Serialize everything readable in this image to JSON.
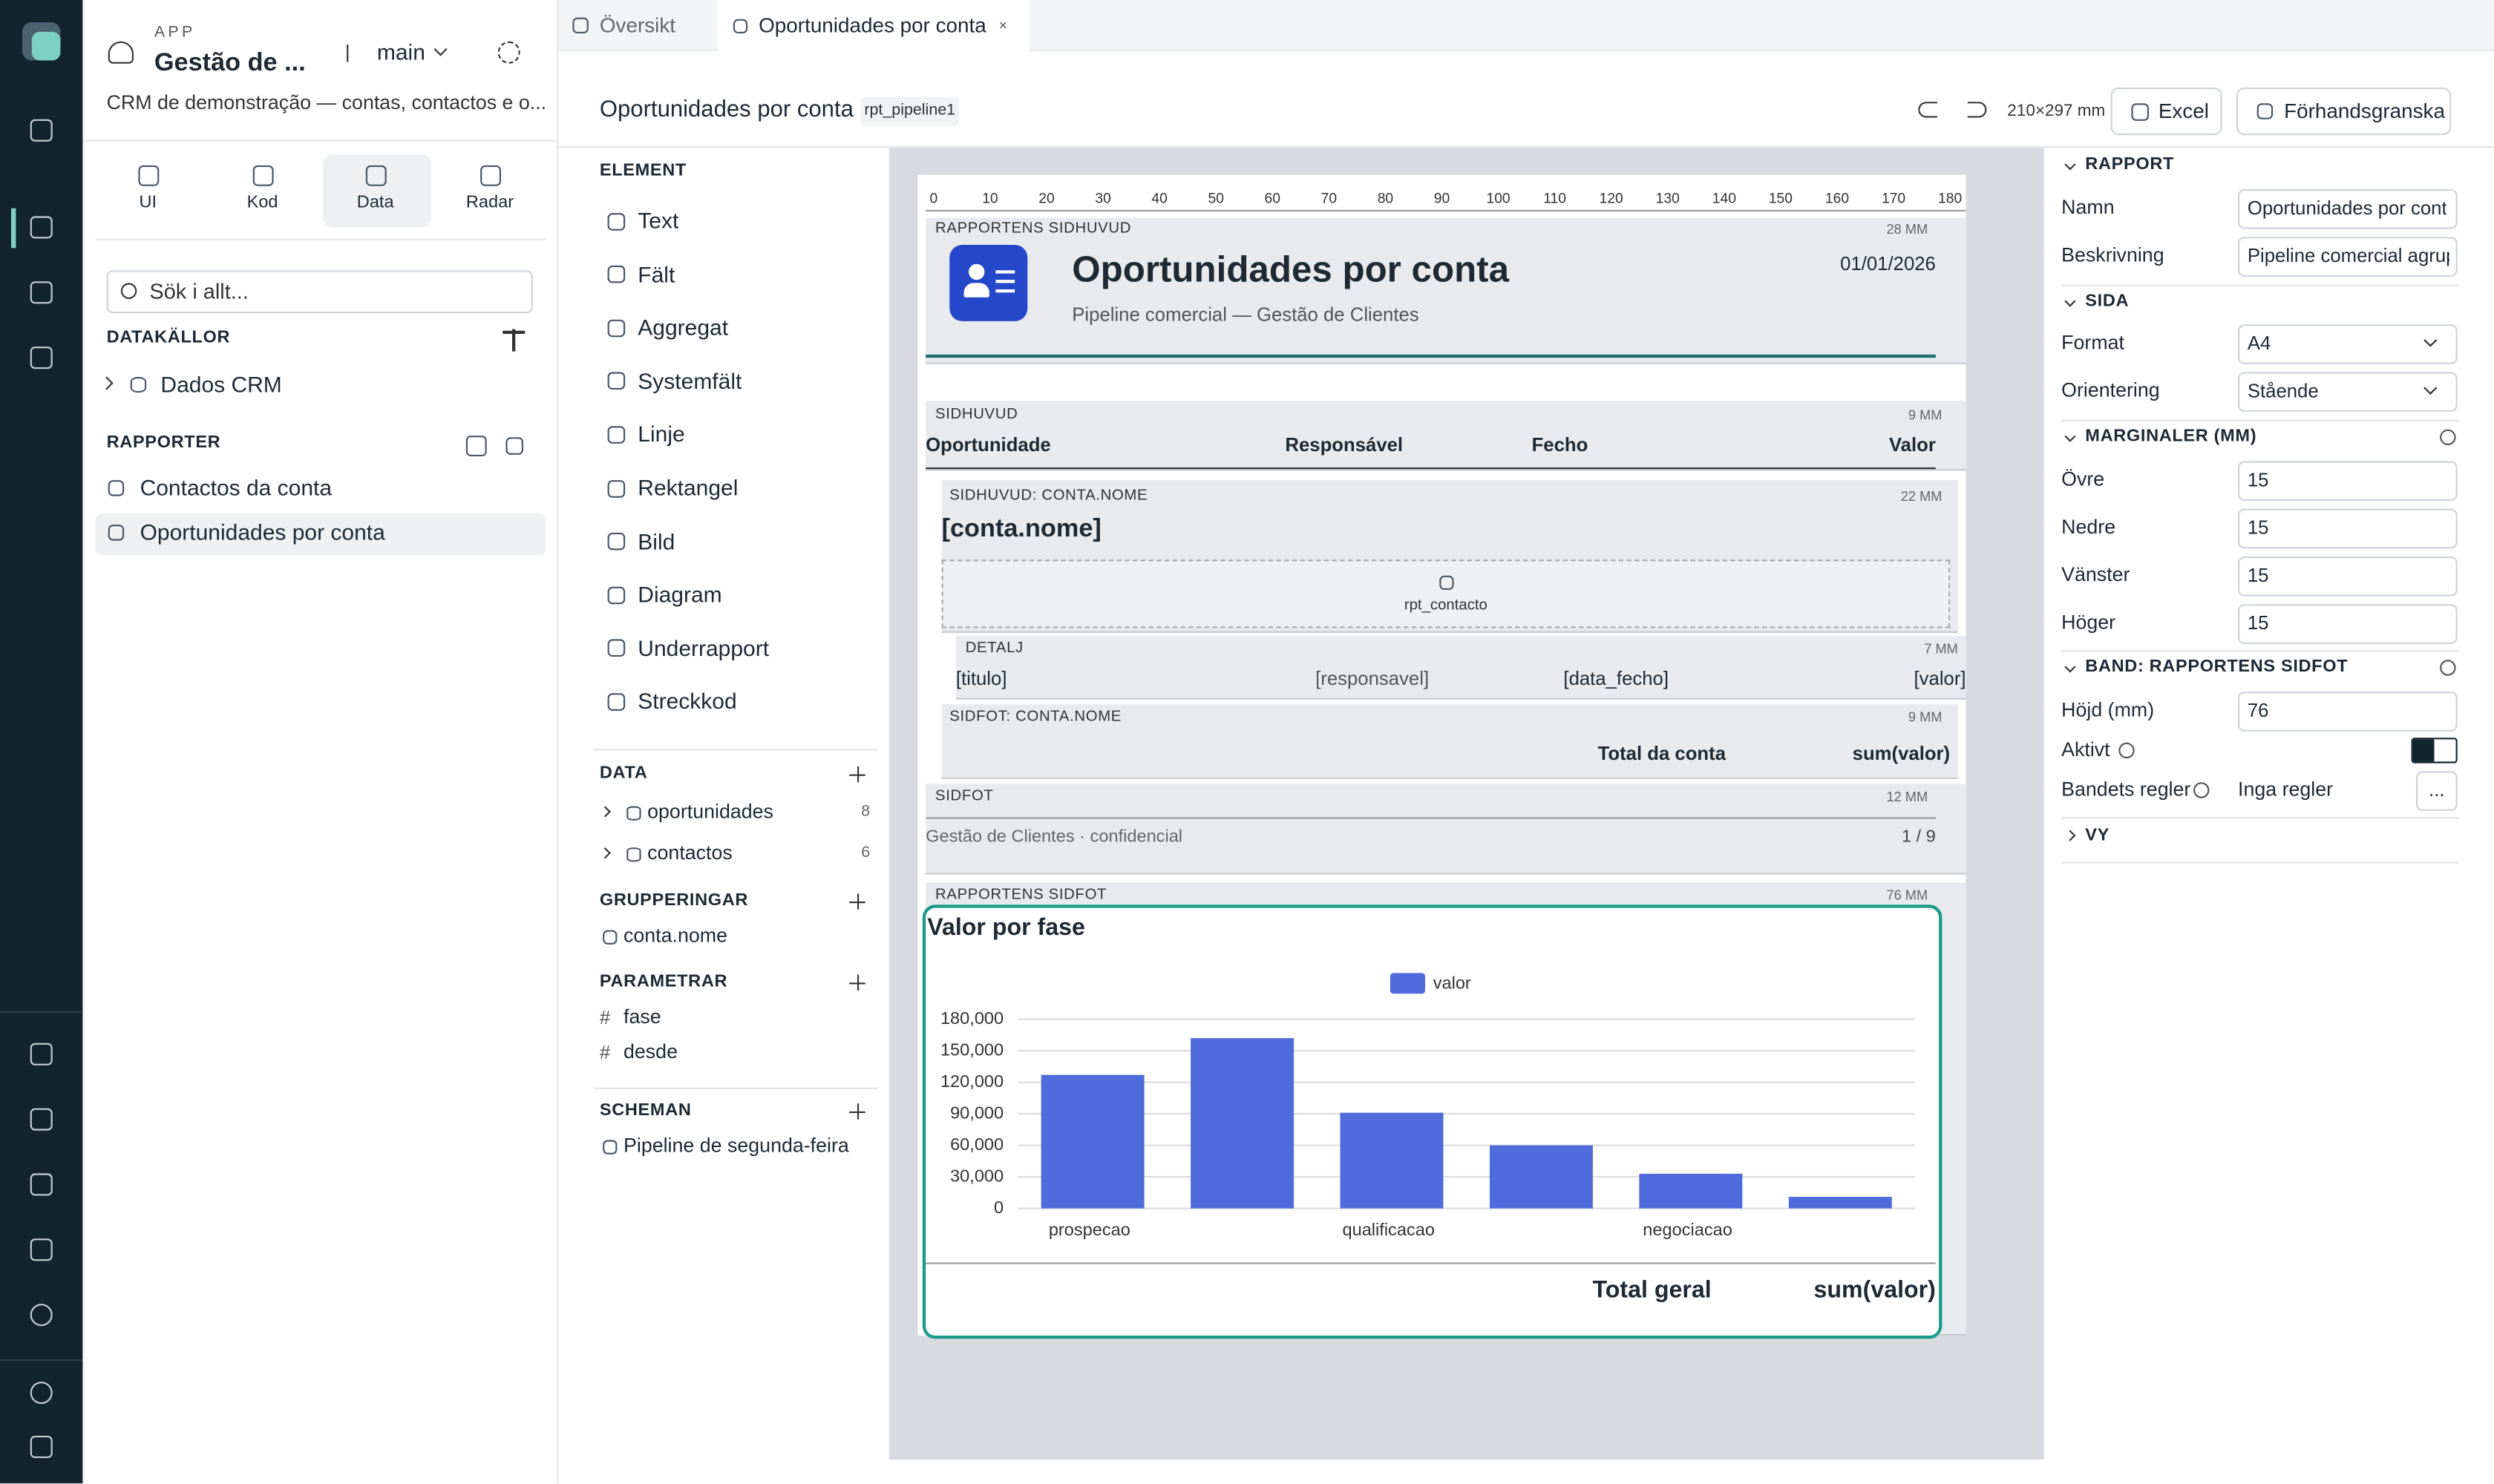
{
  "app": {
    "label": "APP",
    "name": "Gestão de ...",
    "branch": "main",
    "description": "CRM de demonstração — contas, contactos e o..."
  },
  "nav_tabs": [
    "UI",
    "Kod",
    "Data",
    "Radar"
  ],
  "search_placeholder": "Sök i allt...",
  "datasources": {
    "title": "DATAKÄLLOR",
    "items": [
      "Dados CRM"
    ]
  },
  "reports": {
    "title": "RAPPORTER",
    "items": [
      "Contactos da conta",
      "Oportunidades por conta"
    ]
  },
  "tabs": [
    "Översikt",
    "Oportunidades por conta"
  ],
  "toolbar": {
    "title": "Oportunidades por conta",
    "id": "rpt_pipeline1",
    "page_size": "210×297 mm",
    "excel": "Excel",
    "preview": "Förhandsgranska"
  },
  "elements": {
    "title": "ELEMENT",
    "items": [
      "Text",
      "Fält",
      "Aggregat",
      "Systemfält",
      "Linje",
      "Rektangel",
      "Bild",
      "Diagram",
      "Underrapport",
      "Streckkod"
    ]
  },
  "data": {
    "title": "DATA",
    "items": [
      {
        "name": "oportunidades",
        "count": 8
      },
      {
        "name": "contactos",
        "count": 6
      }
    ]
  },
  "groupings": {
    "title": "GRUPPERINGAR",
    "items": [
      "conta.nome"
    ]
  },
  "parameters": {
    "title": "PARAMETRAR",
    "items": [
      "fase",
      "desde"
    ]
  },
  "schedules": {
    "title": "SCHEMAN",
    "items": [
      "Pipeline de segunda-feira"
    ]
  },
  "ruler": [
    0,
    10,
    20,
    30,
    40,
    50,
    60,
    70,
    80,
    90,
    100,
    110,
    120,
    130,
    140,
    150,
    160,
    170,
    180
  ],
  "report": {
    "report_header": {
      "label": "RAPPORTENS SIDHUVUD",
      "height": "28 MM",
      "title": "Oportunidades por conta",
      "subtitle": "Pipeline comercial — Gestão de Clientes",
      "date": "01/01/2026"
    },
    "page_header": {
      "label": "SIDHUVUD",
      "height": "9 MM",
      "columns": [
        "Oportunidade",
        "Responsável",
        "Fecho",
        "Valor"
      ]
    },
    "group_header": {
      "label": "SIDHUVUD: CONTA.NOME",
      "height": "22 MM",
      "field": "[conta.nome]",
      "subreport": "rpt_contacto"
    },
    "detail": {
      "label": "DETALJ",
      "height": "7 MM",
      "fields": [
        "[titulo]",
        "[responsavel]",
        "[data_fecho]",
        "[valor]"
      ]
    },
    "group_footer": {
      "label": "SIDFOT: CONTA.NOME",
      "height": "9 MM",
      "total_label": "Total da conta",
      "total": "sum(valor)"
    },
    "page_footer": {
      "label": "SIDFOT",
      "height": "12 MM",
      "text": "Gestão de Clientes · confidencial",
      "page": "1 / 9"
    },
    "report_footer": {
      "label": "RAPPORTENS SIDFOT",
      "height": "76 MM",
      "total_label": "Total geral",
      "total": "sum(valor)"
    }
  },
  "chart_data": {
    "type": "bar",
    "title": "Valor por fase",
    "categories": [
      "prospecao",
      null,
      "qualificacao",
      null,
      "negociacao",
      null
    ],
    "series": [
      {
        "name": "valor",
        "color": "#4f6bdc",
        "values": [
          127000,
          162000,
          91000,
          60000,
          33000,
          11000
        ]
      }
    ],
    "ylim": [
      0,
      180000
    ],
    "yticks": [
      0,
      {
        "value": 30000,
        "label": "30,000"
      },
      {
        "value": 60000,
        "label": "60,000"
      },
      {
        "value": 90000,
        "label": "90,000"
      },
      {
        "value": 120000,
        "label": "120,000"
      },
      {
        "value": 150000,
        "label": "150,000"
      },
      {
        "value": 180000,
        "label": "180,000"
      }
    ],
    "grid": true,
    "legend": "top"
  },
  "properties": {
    "sections": [
      {
        "title": "RAPPORT",
        "fields": [
          {
            "label": "Namn",
            "value": "Oportunidades por cont"
          },
          {
            "label": "Beskrivning",
            "value": "Pipeline comercial agrup"
          }
        ]
      },
      {
        "title": "SIDA",
        "fields": [
          {
            "label": "Format",
            "value": "A4"
          },
          {
            "label": "Orientering",
            "value": "Stående"
          }
        ]
      },
      {
        "title": "MARGINALER (MM)",
        "fields": [
          {
            "label": "Övre",
            "value": 15
          },
          {
            "label": "Nedre",
            "value": 15
          },
          {
            "label": "Vänster",
            "value": 15
          },
          {
            "label": "Höger",
            "value": 15
          }
        ]
      },
      {
        "title": "BAND: RAPPORTENS SIDFOT",
        "fields": [
          {
            "label": "Höjd (mm)",
            "value": 76
          },
          {
            "label": "Aktivt"
          },
          {
            "label": "Bandets regler",
            "value": "Inga regler",
            "button": "..."
          }
        ]
      },
      {
        "title": "VY",
        "fields": []
      }
    ]
  }
}
